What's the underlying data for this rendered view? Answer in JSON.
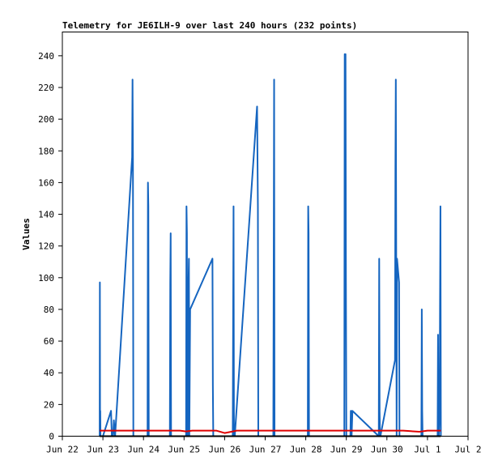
{
  "chart_data": {
    "type": "line",
    "title": "Telemetry for JE6ILH-9 over last 240 hours (232 points)",
    "ylabel": "Values",
    "xlabel": "",
    "xlim": [
      "Jun 22",
      "Jul 2"
    ],
    "ylim": [
      0,
      255
    ],
    "x_ticks": [
      "Jun 22",
      "Jun 23",
      "Jun 24",
      "Jun 25",
      "Jun 26",
      "Jun 27",
      "Jun 28",
      "Jun 29",
      "Jun 30",
      "Jul 1",
      "Jul 2"
    ],
    "y_ticks": [
      0,
      20,
      40,
      60,
      80,
      100,
      120,
      140,
      160,
      180,
      200,
      220,
      240
    ],
    "grid": false,
    "series": [
      {
        "color": "#1565c0",
        "x_unit": "days since Jun 22",
        "x": [
          0.92,
          0.925,
          0.93,
          0.935,
          0.94,
          1.0,
          1.2,
          1.22,
          1.25,
          1.27,
          1.3,
          1.72,
          1.73,
          1.74,
          1.75,
          1.76,
          2.1,
          2.11,
          2.12,
          2.13,
          2.14,
          2.65,
          2.66,
          2.67,
          2.68,
          2.69,
          3.05,
          3.06,
          3.07,
          3.08,
          3.09,
          3.1,
          3.11,
          3.12,
          3.13,
          3.15,
          3.7,
          3.71,
          3.72,
          3.73,
          3.75,
          4.2,
          4.21,
          4.22,
          4.23,
          4.25,
          4.8,
          4.81,
          4.82,
          4.83,
          5.2,
          5.21,
          5.22,
          5.23,
          5.24,
          6.05,
          6.06,
          6.07,
          6.08,
          6.09,
          6.95,
          6.96,
          6.97,
          6.98,
          6.99,
          7.0,
          7.1,
          7.11,
          7.12,
          7.13,
          7.15,
          7.8,
          7.81,
          7.82,
          7.83,
          7.84,
          8.2,
          8.21,
          8.22,
          8.23,
          8.24,
          8.25,
          8.3,
          8.31,
          8.85,
          8.86,
          8.87,
          8.88,
          8.89,
          9.25,
          9.26,
          9.27,
          9.28,
          9.3,
          9.31,
          9.32,
          9.33
        ],
        "y": [
          0,
          97,
          0,
          16,
          0,
          0,
          16,
          0,
          0,
          10,
          0,
          176,
          225,
          176,
          0,
          0,
          0,
          160,
          145,
          0,
          0,
          0,
          97,
          128,
          0,
          0,
          0,
          145,
          128,
          0,
          0,
          80,
          97,
          112,
          0,
          80,
          112,
          32,
          0,
          0,
          0,
          0,
          73,
          145,
          0,
          0,
          208,
          176,
          145,
          0,
          0,
          112,
          225,
          0,
          0,
          0,
          145,
          128,
          0,
          0,
          0,
          241,
          225,
          241,
          97,
          0,
          0,
          16,
          16,
          0,
          16,
          0,
          112,
          16,
          0,
          0,
          48,
          170,
          225,
          112,
          0,
          112,
          97,
          0,
          0,
          80,
          16,
          0,
          0,
          0,
          64,
          0,
          0,
          16,
          88,
          145,
          0
        ]
      },
      {
        "color": "#e00000",
        "x_unit": "days since Jun 22",
        "x": [
          0.92,
          1.5,
          2.5,
          2.9,
          3.05,
          3.2,
          3.5,
          3.8,
          4.0,
          4.3,
          5.0,
          6.0,
          7.0,
          8.0,
          8.4,
          8.8,
          9.0,
          9.33
        ],
        "y": [
          3.5,
          3.5,
          3.5,
          3.5,
          3.0,
          3.5,
          3.5,
          3.5,
          2.0,
          3.5,
          3.5,
          3.5,
          3.5,
          3.5,
          3.5,
          2.8,
          3.5,
          3.5
        ]
      },
      {
        "color": "#000000",
        "x_unit": "days since Jun 22",
        "x": [
          0.92,
          9.33
        ],
        "y": [
          0,
          0
        ]
      }
    ]
  }
}
